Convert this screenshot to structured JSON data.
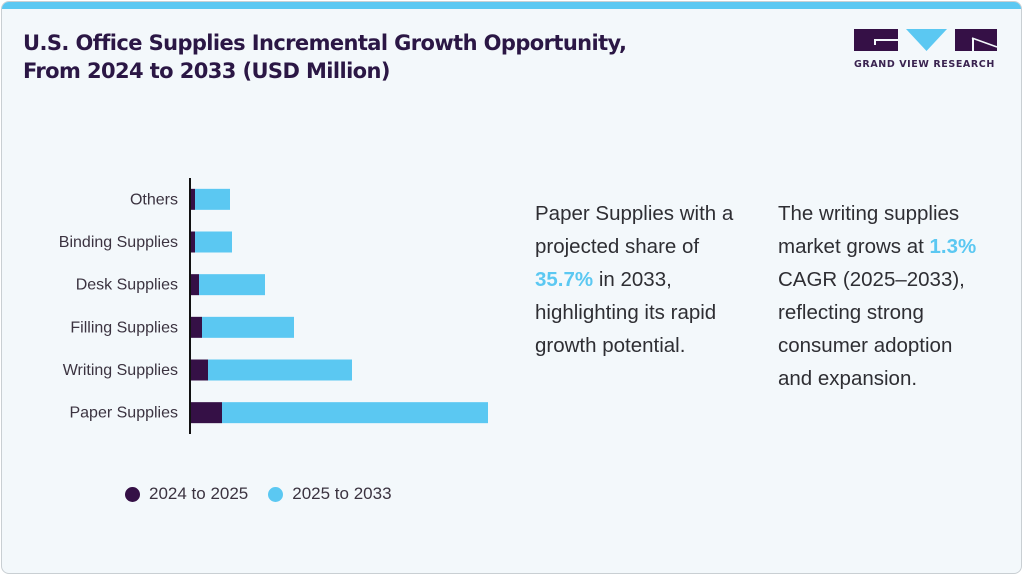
{
  "title": "U.S. Office Supplies Incremental Growth Opportunity, From 2024 to 2033 (USD Million)",
  "brand": {
    "name": "GRAND VIEW RESEARCH",
    "colors": {
      "dark": "#351046",
      "accent": "#5bc8f2"
    }
  },
  "chart_data": {
    "type": "bar",
    "orientation": "horizontal",
    "stacked": true,
    "title": "U.S. Office Supplies Incremental Growth Opportunity, From 2024 to 2033 (USD Million)",
    "xlabel": "",
    "ylabel": "",
    "value_units": "relative (no axis values shown)",
    "categories": [
      "Others",
      "Binding Supplies",
      "Desk Supplies",
      "Filling Supplies",
      "Writing Supplies",
      "Paper Supplies"
    ],
    "series": [
      {
        "name": "2024 to 2025",
        "color": "#351046",
        "values": [
          4,
          4,
          8,
          11,
          17,
          31
        ]
      },
      {
        "name": "2025 to 2033",
        "color": "#5bc8f2",
        "values": [
          35,
          37,
          66,
          92,
          144,
          266
        ]
      }
    ],
    "xlim": [
      0,
      330
    ],
    "grid": false,
    "legend_position": "bottom"
  },
  "legend": {
    "items": [
      {
        "label": "2024 to 2025",
        "color": "#351046"
      },
      {
        "label": "2025 to 2033",
        "color": "#5bc8f2"
      }
    ]
  },
  "notes": [
    {
      "before": "Paper Supplies with a projected share of ",
      "highlight": "35.7%",
      "after": " in 2033, highlighting its rapid growth potential."
    },
    {
      "before": "The writing supplies market grows at ",
      "highlight": "1.3%",
      "after": " CAGR (2025–2033), reflecting strong consumer adoption and expansion."
    }
  ]
}
